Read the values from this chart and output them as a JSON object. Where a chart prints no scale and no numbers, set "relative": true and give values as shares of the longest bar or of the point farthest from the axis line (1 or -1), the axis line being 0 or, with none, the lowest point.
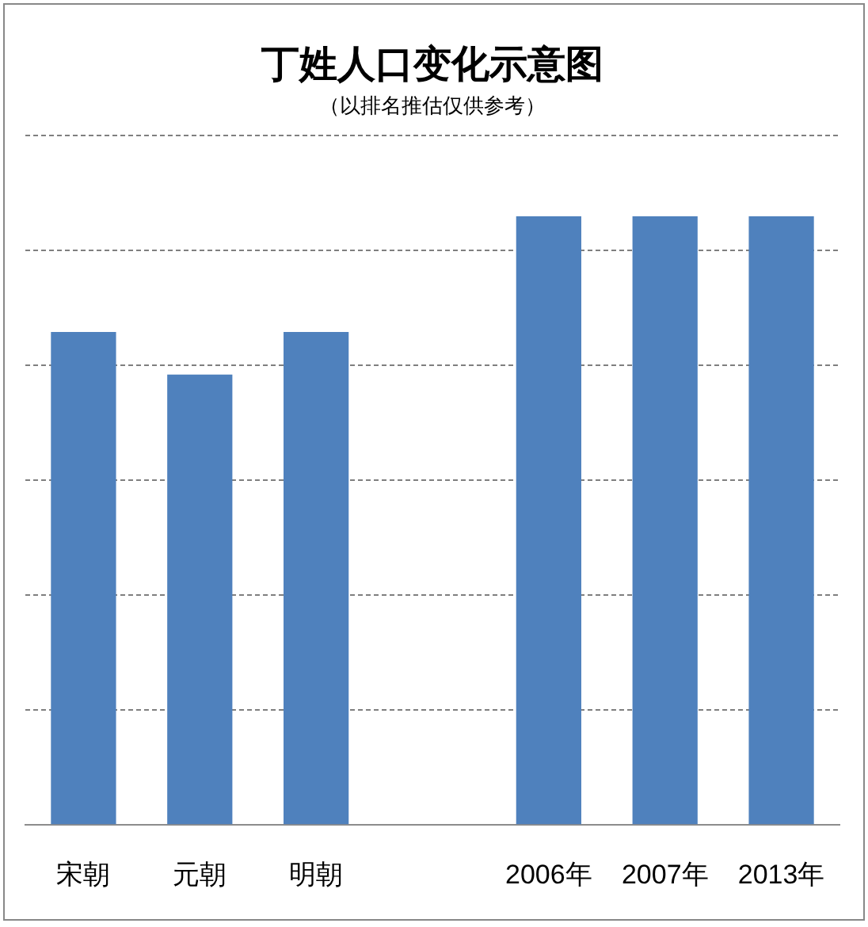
{
  "chart_data": {
    "type": "bar",
    "title": "丁姓人口变化示意图",
    "subtitle": "（以排名推估仅供参考）",
    "categories": [
      "宋朝",
      "元朝",
      "明朝",
      null,
      "2006年",
      "2007年",
      "2013年"
    ],
    "values": [
      0.81,
      0.74,
      0.81,
      null,
      1,
      1,
      1
    ],
    "color": "#4f81bd",
    "relative": true,
    "grid": "y",
    "legend": false
  }
}
